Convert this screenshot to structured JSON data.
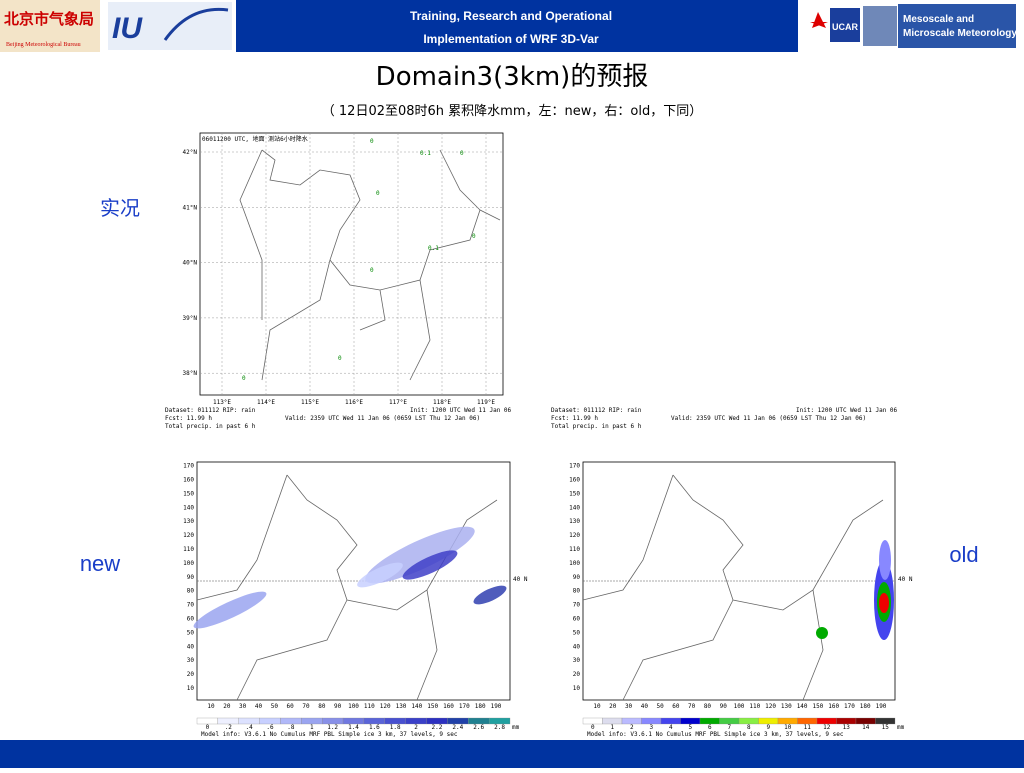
{
  "header": {
    "line1": "Training, Research and Operational",
    "line2": "Implementation of WRF 3D-Var",
    "logo_left": "北京市气象局",
    "logo_left_sub": "Beijing Meteorological Bureau",
    "logo_right": "UCAR",
    "logo_right_text": [
      "Mesoscale and",
      "Microscale Meteorology"
    ]
  },
  "title": "Domain3(3km)的预报",
  "subtitle": "（ 12日02至08时6h 累积降水mm，左：new，右：old，下同）",
  "labels": {
    "observed": "实况",
    "new": "new",
    "old": "old"
  },
  "observed_map": {
    "title": "06011200 UTC, 地面 测站6小时降水",
    "lat_labels": [
      "42°N",
      "41°N",
      "40°N",
      "39°N",
      "38°N"
    ],
    "lon_labels": [
      "113°E",
      "114°E",
      "115°E",
      "116°E",
      "117°E",
      "118°E",
      "119°E"
    ],
    "stations": [
      "0",
      "0.1",
      "0",
      "0",
      "0.1",
      "0",
      "0",
      "0",
      "0"
    ]
  },
  "panels": [
    {
      "info_left": [
        "Dataset: 011112  RIP: rain",
        "Fcst:   11.99 h",
        "Total precip. in past 6 h"
      ],
      "info_right": [
        "Init: 1200 UTC Wed 11 Jan 06",
        "Valid: 2359 UTC Wed 11 Jan 06 (0659 LST Thu 12 Jan 06)"
      ],
      "y_labels": [
        "10",
        "20",
        "30",
        "40",
        "50",
        "60",
        "70",
        "80",
        "90",
        "100",
        "110",
        "120",
        "130",
        "140",
        "150",
        "160",
        "170"
      ],
      "x_labels": [
        "10",
        "20",
        "30",
        "40",
        "50",
        "60",
        "70",
        "80",
        "90",
        "100",
        "110",
        "120",
        "130",
        "140",
        "150",
        "160",
        "170",
        "180",
        "190"
      ],
      "lat_line": "40 N",
      "colorbar": [
        "0",
        ".2",
        ".4",
        ".6",
        ".8",
        "1",
        "1.2",
        "1.4",
        "1.6",
        "1.8",
        "2",
        "2.2",
        "2.4",
        "2.6",
        "2.8"
      ],
      "unit": "mm",
      "model_info": "Model info: V3.6.1 No Cumulus MRF PBL    Simple ice    3 km, 37 levels,    9 sec"
    },
    {
      "info_left": [
        "Dataset: 011112  RIP: rain",
        "Fcst:   11.99 h",
        "Total precip. in past 6 h"
      ],
      "info_right": [
        "Init: 1200 UTC Wed 11 Jan 06",
        "Valid: 2359 UTC Wed 11 Jan 06 (0659 LST Thu 12 Jan 06)"
      ],
      "y_labels": [
        "10",
        "20",
        "30",
        "40",
        "50",
        "60",
        "70",
        "80",
        "90",
        "100",
        "110",
        "120",
        "130",
        "140",
        "150",
        "160",
        "170"
      ],
      "x_labels": [
        "10",
        "20",
        "30",
        "40",
        "50",
        "60",
        "70",
        "80",
        "90",
        "100",
        "110",
        "120",
        "130",
        "140",
        "150",
        "160",
        "170",
        "180",
        "190"
      ],
      "lat_line": "40 N",
      "colorbar": [
        "0",
        "1",
        "2",
        "3",
        "4",
        "5",
        "6",
        "7",
        "8",
        "9",
        "10",
        "11",
        "12",
        "13",
        "14",
        "15"
      ],
      "unit": "mm",
      "model_info": "Model info: V3.6.1 No Cumulus MRF PBL    Simple ice    3 km, 37 levels,    9 sec"
    }
  ]
}
